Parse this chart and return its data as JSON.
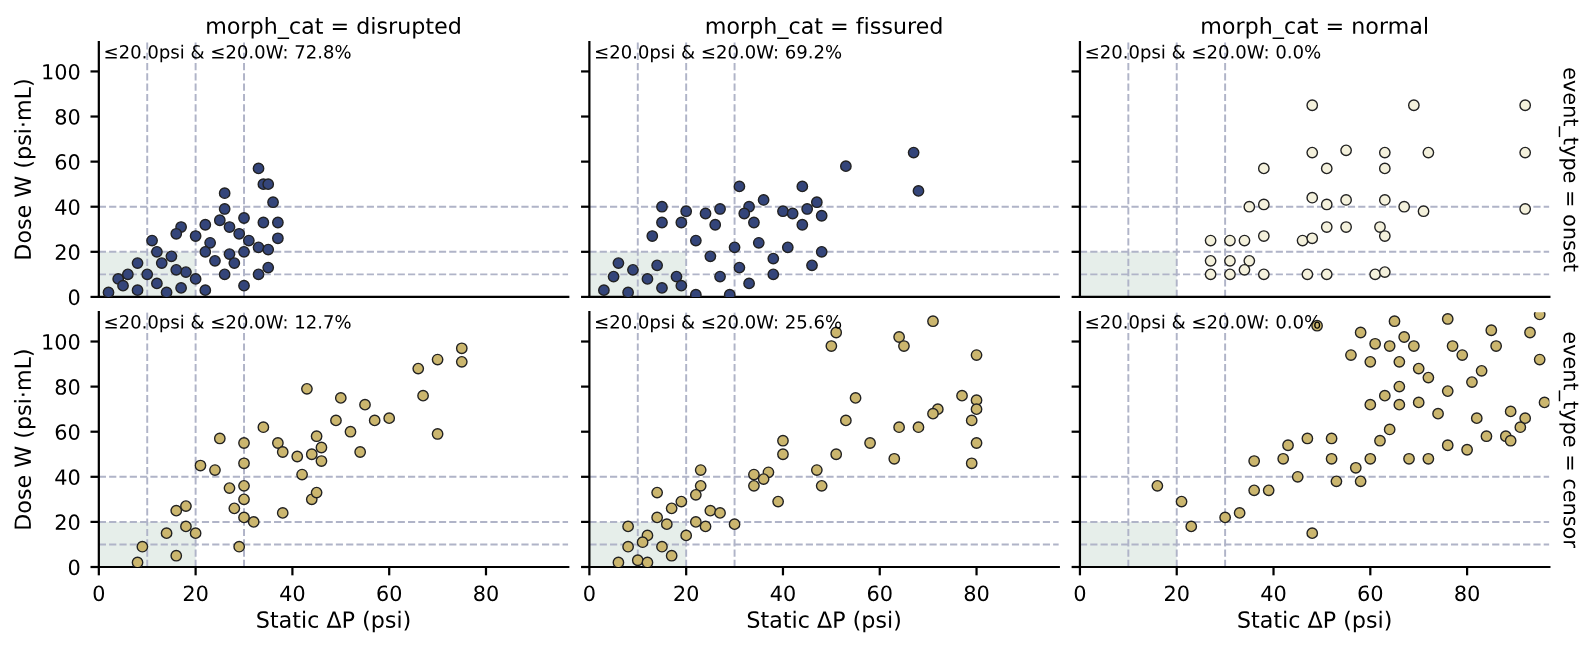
{
  "chart_data": [
    {
      "type": "scatter",
      "title": "morph_cat = disrupted",
      "ylabel": "Dose W (psi·mL)",
      "annotations": [
        "≤20.0psi & ≤20.0W: 72.8%"
      ],
      "tick_labels": "y",
      "marker": "circle",
      "grid": false,
      "xlim": [
        0,
        97
      ],
      "ylim": [
        0,
        113
      ],
      "xticks": [
        0,
        20,
        40,
        60,
        80
      ],
      "yticks": [
        0,
        20,
        40,
        60,
        80,
        100
      ],
      "ref_lines": [
        {
          "axis": "x",
          "value": 10,
          "label": null,
          "color": "#b0b4c8",
          "line_style": "dashed"
        },
        {
          "axis": "x",
          "value": 20,
          "label": null,
          "color": "#b0b4c8",
          "line_style": "dashed"
        },
        {
          "axis": "x",
          "value": 30,
          "label": null,
          "color": "#b0b4c8",
          "line_style": "dashed"
        },
        {
          "axis": "y",
          "value": 10,
          "label": null,
          "color": "#b0b4c8",
          "line_style": "dashed"
        },
        {
          "axis": "y",
          "value": 20,
          "label": null,
          "color": "#b0b4c8",
          "line_style": "dashed"
        },
        {
          "axis": "y",
          "value": 40,
          "label": null,
          "color": "#b0b4c8",
          "line_style": "dashed"
        }
      ],
      "bands": [
        {
          "axis": "x",
          "from": 0,
          "to": 20,
          "label": null,
          "color": "#e6eeea"
        }
      ],
      "series": [
        {
          "color": "#34457a",
          "x": [
            33,
            34,
            35,
            26,
            36,
            26,
            30,
            34,
            37,
            25,
            22,
            17,
            27,
            16,
            20,
            29,
            37,
            11,
            23,
            31,
            33,
            35,
            12,
            15,
            22,
            27,
            30,
            8,
            13,
            24,
            28,
            35,
            33,
            4,
            10,
            18,
            26,
            30,
            5,
            12,
            17,
            22,
            2,
            8,
            14,
            20,
            16,
            6
          ],
          "values": [
            57,
            50,
            50,
            46,
            42,
            39,
            35,
            33,
            33,
            34,
            32,
            31,
            31,
            28,
            27,
            28,
            26,
            25,
            24,
            25,
            22,
            21,
            20,
            18,
            20,
            19,
            20,
            15,
            15,
            16,
            15,
            13,
            10,
            8,
            10,
            11,
            10,
            5,
            5,
            6,
            4,
            3,
            2,
            3,
            2,
            8,
            12,
            10
          ]
        }
      ]
    },
    {
      "type": "scatter",
      "title": "morph_cat = fissured",
      "annotations": [
        "≤20.0psi & ≤20.0W: 69.2%"
      ],
      "tick_labels": false,
      "marker": "circle",
      "grid": false,
      "xlim": [
        0,
        97
      ],
      "ylim": [
        0,
        113
      ],
      "xticks": [
        0,
        20,
        40,
        60,
        80
      ],
      "yticks": [
        0,
        20,
        40,
        60,
        80,
        100
      ],
      "ref_lines": [
        {
          "axis": "x",
          "value": 10,
          "label": null,
          "color": "#b0b4c8",
          "line_style": "dashed"
        },
        {
          "axis": "x",
          "value": 20,
          "label": null,
          "color": "#b0b4c8",
          "line_style": "dashed"
        },
        {
          "axis": "x",
          "value": 30,
          "label": null,
          "color": "#b0b4c8",
          "line_style": "dashed"
        },
        {
          "axis": "y",
          "value": 10,
          "label": null,
          "color": "#b0b4c8",
          "line_style": "dashed"
        },
        {
          "axis": "y",
          "value": 20,
          "label": null,
          "color": "#b0b4c8",
          "line_style": "dashed"
        },
        {
          "axis": "y",
          "value": 40,
          "label": null,
          "color": "#b0b4c8",
          "line_style": "dashed"
        }
      ],
      "bands": [
        {
          "axis": "x",
          "from": 0,
          "to": 20,
          "label": null,
          "color": "#e6eeea"
        }
      ],
      "series": [
        {
          "color": "#34457a",
          "x": [
            67,
            53,
            68,
            31,
            44,
            47,
            33,
            36,
            15,
            20,
            24,
            27,
            32,
            40,
            42,
            45,
            48,
            15,
            19,
            26,
            34,
            44,
            13,
            22,
            30,
            35,
            41,
            48,
            38,
            46,
            9,
            14,
            25,
            31,
            38,
            5,
            12,
            18,
            27,
            33,
            3,
            8,
            15,
            22,
            29,
            19,
            6
          ],
          "values": [
            64,
            58,
            47,
            49,
            49,
            42,
            40,
            43,
            40,
            38,
            37,
            39,
            37,
            38,
            37,
            39,
            36,
            33,
            33,
            32,
            33,
            32,
            27,
            25,
            22,
            24,
            22,
            20,
            17,
            14,
            12,
            14,
            18,
            13,
            10,
            9,
            8,
            9,
            9,
            6,
            3,
            2,
            4,
            1,
            1,
            5,
            15
          ]
        }
      ]
    },
    {
      "type": "scatter",
      "title": "morph_cat = normal",
      "annotations": [
        "≤20.0psi & ≤20.0W: 0.0%",
        "event_type = onset"
      ],
      "tick_labels": false,
      "marker": "circle",
      "grid": false,
      "xlim": [
        0,
        97
      ],
      "ylim": [
        0,
        113
      ],
      "xticks": [
        0,
        20,
        40,
        60,
        80
      ],
      "yticks": [
        0,
        20,
        40,
        60,
        80,
        100
      ],
      "ref_lines": [
        {
          "axis": "x",
          "value": 10,
          "label": null,
          "color": "#b0b4c8",
          "line_style": "dashed"
        },
        {
          "axis": "x",
          "value": 20,
          "label": null,
          "color": "#b0b4c8",
          "line_style": "dashed"
        },
        {
          "axis": "x",
          "value": 30,
          "label": null,
          "color": "#b0b4c8",
          "line_style": "dashed"
        },
        {
          "axis": "y",
          "value": 10,
          "label": null,
          "color": "#b0b4c8",
          "line_style": "dashed"
        },
        {
          "axis": "y",
          "value": 20,
          "label": null,
          "color": "#b0b4c8",
          "line_style": "dashed"
        },
        {
          "axis": "y",
          "value": 40,
          "label": null,
          "color": "#b0b4c8",
          "line_style": "dashed"
        }
      ],
      "bands": [
        {
          "axis": "x",
          "from": 0,
          "to": 20,
          "label": null,
          "color": "#e6eeea"
        }
      ],
      "series": [
        {
          "color": "#f4f1dc",
          "x": [
            48,
            69,
            92,
            48,
            55,
            63,
            72,
            92,
            38,
            51,
            63,
            35,
            38,
            48,
            51,
            55,
            63,
            67,
            71,
            92,
            27,
            31,
            34,
            38,
            46,
            48,
            51,
            55,
            62,
            63,
            27,
            31,
            35,
            27,
            31,
            34,
            38,
            47,
            51,
            61,
            63
          ],
          "values": [
            85,
            85,
            85,
            64,
            65,
            64,
            64,
            64,
            57,
            57,
            57,
            40,
            41,
            44,
            41,
            43,
            43,
            40,
            38,
            39,
            25,
            25,
            25,
            27,
            25,
            26,
            31,
            31,
            31,
            27,
            16,
            16,
            16,
            10,
            10,
            12,
            10,
            10,
            10,
            10,
            11
          ]
        }
      ]
    },
    {
      "type": "scatter",
      "xlabel": "Static ΔP (psi)",
      "ylabel": "Dose W (psi·mL)",
      "annotations": [
        "≤20.0psi & ≤20.0W: 12.7%"
      ],
      "marker": "circle",
      "grid": false,
      "xlim": [
        0,
        97
      ],
      "ylim": [
        0,
        113
      ],
      "xticks": [
        0,
        20,
        40,
        60,
        80
      ],
      "yticks": [
        0,
        20,
        40,
        60,
        80,
        100
      ],
      "ref_lines": [
        {
          "axis": "x",
          "value": 10,
          "label": null,
          "color": "#b0b4c8",
          "line_style": "dashed"
        },
        {
          "axis": "x",
          "value": 20,
          "label": null,
          "color": "#b0b4c8",
          "line_style": "dashed"
        },
        {
          "axis": "x",
          "value": 30,
          "label": null,
          "color": "#b0b4c8",
          "line_style": "dashed"
        },
        {
          "axis": "y",
          "value": 10,
          "label": null,
          "color": "#b0b4c8",
          "line_style": "dashed"
        },
        {
          "axis": "y",
          "value": 20,
          "label": null,
          "color": "#b0b4c8",
          "line_style": "dashed"
        },
        {
          "axis": "y",
          "value": 40,
          "label": null,
          "color": "#b0b4c8",
          "line_style": "dashed"
        }
      ],
      "bands": [
        {
          "axis": "x",
          "from": 0,
          "to": 20,
          "label": null,
          "color": "#e6eeea"
        }
      ],
      "series": [
        {
          "color": "#cbb66e",
          "x": [
            75,
            70,
            75,
            66,
            67,
            43,
            50,
            55,
            49,
            57,
            60,
            52,
            70,
            25,
            30,
            34,
            37,
            45,
            38,
            41,
            44,
            46,
            46,
            54,
            21,
            24,
            30,
            42,
            27,
            30,
            44,
            45,
            28,
            30,
            38,
            16,
            18,
            30,
            32,
            18,
            20,
            14,
            9,
            29,
            16,
            8
          ],
          "values": [
            97,
            92,
            91,
            88,
            76,
            79,
            75,
            72,
            65,
            65,
            66,
            60,
            59,
            57,
            55,
            62,
            55,
            58,
            51,
            49,
            50,
            53,
            47,
            51,
            45,
            43,
            46,
            41,
            35,
            36,
            30,
            33,
            26,
            30,
            24,
            25,
            27,
            22,
            20,
            18,
            15,
            15,
            9,
            9,
            5,
            2
          ]
        }
      ]
    },
    {
      "type": "scatter",
      "xlabel": "Static ΔP (psi)",
      "annotations": [
        "≤20.0psi & ≤20.0W: 25.6%"
      ],
      "tick_labels": "x",
      "marker": "circle",
      "grid": false,
      "xlim": [
        0,
        97
      ],
      "ylim": [
        0,
        113
      ],
      "xticks": [
        0,
        20,
        40,
        60,
        80
      ],
      "yticks": [
        0,
        20,
        40,
        60,
        80,
        100
      ],
      "ref_lines": [
        {
          "axis": "x",
          "value": 10,
          "label": null,
          "color": "#b0b4c8",
          "line_style": "dashed"
        },
        {
          "axis": "x",
          "value": 20,
          "label": null,
          "color": "#b0b4c8",
          "line_style": "dashed"
        },
        {
          "axis": "x",
          "value": 30,
          "label": null,
          "color": "#b0b4c8",
          "line_style": "dashed"
        },
        {
          "axis": "y",
          "value": 10,
          "label": null,
          "color": "#b0b4c8",
          "line_style": "dashed"
        },
        {
          "axis": "y",
          "value": 20,
          "label": null,
          "color": "#b0b4c8",
          "line_style": "dashed"
        },
        {
          "axis": "y",
          "value": 40,
          "label": null,
          "color": "#b0b4c8",
          "line_style": "dashed"
        }
      ],
      "bands": [
        {
          "axis": "x",
          "from": 0,
          "to": 20,
          "label": null,
          "color": "#e6eeea"
        }
      ],
      "series": [
        {
          "color": "#cbb66e",
          "x": [
            71,
            51,
            64,
            50,
            65,
            80,
            55,
            77,
            80,
            72,
            80,
            53,
            79,
            64,
            68,
            71,
            40,
            58,
            80,
            40,
            51,
            63,
            79,
            23,
            34,
            37,
            47,
            36,
            34,
            48,
            23,
            14,
            22,
            19,
            17,
            39,
            14,
            25,
            27,
            22,
            30,
            8,
            12,
            16,
            20,
            24,
            11,
            15,
            17,
            8,
            6,
            10,
            12
          ],
          "values": [
            109,
            104,
            102,
            98,
            98,
            94,
            75,
            76,
            74,
            70,
            70,
            65,
            65,
            62,
            62,
            68,
            56,
            55,
            55,
            50,
            50,
            48,
            46,
            43,
            41,
            42,
            43,
            39,
            36,
            36,
            36,
            33,
            32,
            29,
            26,
            29,
            22,
            25,
            24,
            20,
            19,
            18,
            14,
            19,
            14,
            18,
            11,
            9,
            5,
            9,
            2,
            3,
            2
          ]
        }
      ]
    },
    {
      "type": "scatter",
      "xlabel": "Static ΔP (psi)",
      "annotations": [
        "≤20.0psi & ≤20.0W: 0.0%",
        "event_type = censor"
      ],
      "tick_labels": "x",
      "marker": "circle",
      "grid": false,
      "xlim": [
        0,
        97
      ],
      "ylim": [
        0,
        113
      ],
      "xticks": [
        0,
        20,
        40,
        60,
        80
      ],
      "yticks": [
        0,
        20,
        40,
        60,
        80,
        100
      ],
      "ref_lines": [
        {
          "axis": "x",
          "value": 10,
          "label": null,
          "color": "#b0b4c8",
          "line_style": "dashed"
        },
        {
          "axis": "x",
          "value": 20,
          "label": null,
          "color": "#b0b4c8",
          "line_style": "dashed"
        },
        {
          "axis": "x",
          "value": 30,
          "label": null,
          "color": "#b0b4c8",
          "line_style": "dashed"
        },
        {
          "axis": "y",
          "value": 10,
          "label": null,
          "color": "#b0b4c8",
          "line_style": "dashed"
        },
        {
          "axis": "y",
          "value": 20,
          "label": null,
          "color": "#b0b4c8",
          "line_style": "dashed"
        },
        {
          "axis": "y",
          "value": 40,
          "label": null,
          "color": "#b0b4c8",
          "line_style": "dashed"
        }
      ],
      "bands": [
        {
          "axis": "x",
          "from": 0,
          "to": 20,
          "label": null,
          "color": "#e6eeea"
        }
      ],
      "series": [
        {
          "color": "#cbb66e",
          "x": [
            16,
            21,
            23,
            30,
            33,
            48,
            36,
            39,
            36,
            42,
            45,
            43,
            47,
            52,
            52,
            57,
            58,
            53,
            60,
            62,
            64,
            60,
            63,
            66,
            70,
            66,
            72,
            76,
            74,
            72,
            68,
            76,
            80,
            84,
            82,
            88,
            89,
            91,
            96,
            95,
            93,
            86,
            85,
            79,
            76,
            65,
            61,
            67,
            69,
            70,
            64,
            58,
            56,
            60,
            66,
            77,
            81,
            83,
            89,
            92,
            95,
            49
          ],
          "values": [
            36,
            29,
            18,
            22,
            24,
            15,
            34,
            34,
            47,
            48,
            40,
            54,
            57,
            57,
            48,
            44,
            38,
            38,
            48,
            56,
            61,
            72,
            76,
            72,
            73,
            80,
            84,
            78,
            68,
            48,
            48,
            54,
            52,
            58,
            66,
            58,
            69,
            62,
            73,
            92,
            104,
            98,
            105,
            94,
            110,
            109,
            99,
            102,
            98,
            88,
            98,
            104,
            94,
            91,
            91,
            98,
            82,
            87,
            56,
            66,
            112,
            107
          ]
        }
      ]
    }
  ]
}
